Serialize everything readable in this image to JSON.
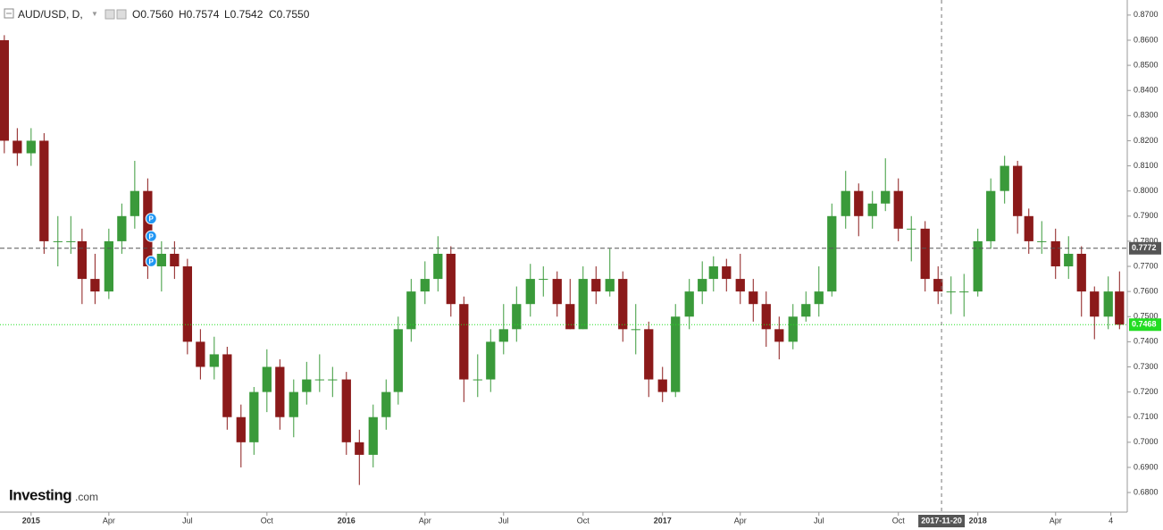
{
  "chart_data": {
    "type": "candlestick",
    "symbol": "AUD/USD, D,",
    "ohlc_readout": [
      "O0.7560",
      "H0.7574",
      "L0.7542",
      "C0.7550"
    ],
    "watermark": [
      "Investing",
      ".com"
    ],
    "up_color": "#3a9a3a",
    "down_color": "#8b1a1a",
    "grid": false,
    "xlim": [
      "2014-11-26",
      "2018-06-23"
    ],
    "ylim": [
      0.6722,
      0.876
    ],
    "xticks": [
      {
        "value": "2015-01-01",
        "label": "2015"
      },
      {
        "value": "2015-04-01",
        "label": "Apr"
      },
      {
        "value": "2015-07-01",
        "label": "Jul"
      },
      {
        "value": "2015-10-01",
        "label": "Oct"
      },
      {
        "value": "2016-01-01",
        "label": "2016"
      },
      {
        "value": "2016-04-01",
        "label": "Apr"
      },
      {
        "value": "2016-07-01",
        "label": "Jul"
      },
      {
        "value": "2016-10-01",
        "label": "Oct"
      },
      {
        "value": "2017-01-01",
        "label": "2017"
      },
      {
        "value": "2017-04-01",
        "label": "Apr"
      },
      {
        "value": "2017-07-01",
        "label": "Jul"
      },
      {
        "value": "2017-10-01",
        "label": "Oct"
      },
      {
        "value": "2018-01-01",
        "label": "2018"
      },
      {
        "value": "2018-04-01",
        "label": "Apr"
      },
      {
        "value": "2018-06-04",
        "label": "4"
      }
    ],
    "yticks": [
      {
        "value": 0.68,
        "label": "0.6800"
      },
      {
        "value": 0.69,
        "label": "0.6900"
      },
      {
        "value": 0.7,
        "label": "0.7000"
      },
      {
        "value": 0.71,
        "label": "0.7100"
      },
      {
        "value": 0.72,
        "label": "0.7200"
      },
      {
        "value": 0.73,
        "label": "0.7300"
      },
      {
        "value": 0.74,
        "label": "0.7400"
      },
      {
        "value": 0.75,
        "label": "0.7500"
      },
      {
        "value": 0.76,
        "label": "0.7600"
      },
      {
        "value": 0.77,
        "label": "0.7700"
      },
      {
        "value": 0.78,
        "label": "0.7800"
      },
      {
        "value": 0.79,
        "label": "0.7900"
      },
      {
        "value": 0.8,
        "label": "0.8000"
      },
      {
        "value": 0.81,
        "label": "0.8100"
      },
      {
        "value": 0.82,
        "label": "0.8200"
      },
      {
        "value": 0.83,
        "label": "0.8300"
      },
      {
        "value": 0.84,
        "label": "0.8400"
      },
      {
        "value": 0.85,
        "label": "0.8500"
      },
      {
        "value": 0.86,
        "label": "0.8600"
      },
      {
        "value": 0.87,
        "label": "0.8700"
      }
    ],
    "reference_line": {
      "value": 0.7772,
      "color": "#555555"
    },
    "last_price": {
      "value": 0.7468,
      "color": "#22dd22"
    },
    "crosshair": {
      "x": "2017-11-20"
    },
    "markers": [
      {
        "x": "2015-05-20",
        "y": 0.789,
        "label": "P"
      },
      {
        "x": "2015-05-20",
        "y": 0.782,
        "label": "P"
      },
      {
        "x": "2015-05-20",
        "y": 0.772,
        "label": "P"
      }
    ],
    "x": [
      "2014-12-01",
      "2014-12-16",
      "2015-01-01",
      "2015-01-16",
      "2015-02-01",
      "2015-02-16",
      "2015-03-01",
      "2015-03-16",
      "2015-04-01",
      "2015-04-16",
      "2015-05-01",
      "2015-05-16",
      "2015-06-01",
      "2015-06-16",
      "2015-07-01",
      "2015-07-16",
      "2015-08-01",
      "2015-08-16",
      "2015-09-01",
      "2015-09-16",
      "2015-10-01",
      "2015-10-16",
      "2015-11-01",
      "2015-11-16",
      "2015-12-01",
      "2015-12-16",
      "2016-01-01",
      "2016-01-16",
      "2016-02-01",
      "2016-02-16",
      "2016-03-01",
      "2016-03-16",
      "2016-04-01",
      "2016-04-16",
      "2016-05-01",
      "2016-05-16",
      "2016-06-01",
      "2016-06-16",
      "2016-07-01",
      "2016-07-16",
      "2016-08-01",
      "2016-08-16",
      "2016-09-01",
      "2016-09-16",
      "2016-10-01",
      "2016-10-16",
      "2016-11-01",
      "2016-11-16",
      "2016-12-01",
      "2016-12-16",
      "2017-01-01",
      "2017-01-16",
      "2017-02-01",
      "2017-02-16",
      "2017-03-01",
      "2017-03-16",
      "2017-04-01",
      "2017-04-16",
      "2017-05-01",
      "2017-05-16",
      "2017-06-01",
      "2017-06-16",
      "2017-07-01",
      "2017-07-16",
      "2017-08-01",
      "2017-08-16",
      "2017-09-01",
      "2017-09-16",
      "2017-10-01",
      "2017-10-16",
      "2017-11-01",
      "2017-11-16",
      "2017-12-01",
      "2017-12-16",
      "2018-01-01",
      "2018-01-16",
      "2018-02-01",
      "2018-02-16",
      "2018-03-01",
      "2018-03-16",
      "2018-04-01",
      "2018-04-16",
      "2018-05-01",
      "2018-05-16",
      "2018-06-01",
      "2018-06-14"
    ],
    "candles": [
      [
        0.86,
        0.862,
        0.815,
        0.82
      ],
      [
        0.82,
        0.825,
        0.81,
        0.815
      ],
      [
        0.815,
        0.825,
        0.81,
        0.82
      ],
      [
        0.82,
        0.823,
        0.775,
        0.78
      ],
      [
        0.78,
        0.79,
        0.77,
        0.78
      ],
      [
        0.78,
        0.79,
        0.775,
        0.78
      ],
      [
        0.78,
        0.785,
        0.755,
        0.765
      ],
      [
        0.765,
        0.775,
        0.755,
        0.76
      ],
      [
        0.76,
        0.785,
        0.757,
        0.78
      ],
      [
        0.78,
        0.795,
        0.775,
        0.79
      ],
      [
        0.79,
        0.812,
        0.785,
        0.8
      ],
      [
        0.8,
        0.805,
        0.765,
        0.77
      ],
      [
        0.77,
        0.78,
        0.76,
        0.775
      ],
      [
        0.775,
        0.78,
        0.765,
        0.77
      ],
      [
        0.77,
        0.773,
        0.735,
        0.74
      ],
      [
        0.74,
        0.745,
        0.725,
        0.73
      ],
      [
        0.73,
        0.742,
        0.725,
        0.735
      ],
      [
        0.735,
        0.738,
        0.705,
        0.71
      ],
      [
        0.71,
        0.715,
        0.69,
        0.7
      ],
      [
        0.7,
        0.722,
        0.695,
        0.72
      ],
      [
        0.72,
        0.737,
        0.712,
        0.73
      ],
      [
        0.73,
        0.733,
        0.705,
        0.71
      ],
      [
        0.71,
        0.725,
        0.702,
        0.72
      ],
      [
        0.72,
        0.732,
        0.715,
        0.725
      ],
      [
        0.725,
        0.735,
        0.72,
        0.725
      ],
      [
        0.725,
        0.73,
        0.718,
        0.725
      ],
      [
        0.725,
        0.728,
        0.695,
        0.7
      ],
      [
        0.7,
        0.705,
        0.683,
        0.695
      ],
      [
        0.695,
        0.715,
        0.69,
        0.71
      ],
      [
        0.71,
        0.725,
        0.705,
        0.72
      ],
      [
        0.72,
        0.75,
        0.715,
        0.745
      ],
      [
        0.745,
        0.765,
        0.74,
        0.76
      ],
      [
        0.76,
        0.772,
        0.755,
        0.765
      ],
      [
        0.765,
        0.782,
        0.76,
        0.775
      ],
      [
        0.775,
        0.778,
        0.75,
        0.755
      ],
      [
        0.755,
        0.758,
        0.716,
        0.725
      ],
      [
        0.725,
        0.735,
        0.718,
        0.725
      ],
      [
        0.725,
        0.745,
        0.72,
        0.74
      ],
      [
        0.74,
        0.755,
        0.735,
        0.745
      ],
      [
        0.745,
        0.762,
        0.74,
        0.755
      ],
      [
        0.755,
        0.771,
        0.75,
        0.765
      ],
      [
        0.765,
        0.77,
        0.758,
        0.765
      ],
      [
        0.765,
        0.768,
        0.75,
        0.755
      ],
      [
        0.755,
        0.765,
        0.745,
        0.745
      ],
      [
        0.745,
        0.77,
        0.745,
        0.765
      ],
      [
        0.765,
        0.77,
        0.755,
        0.76
      ],
      [
        0.76,
        0.777,
        0.758,
        0.765
      ],
      [
        0.765,
        0.768,
        0.74,
        0.745
      ],
      [
        0.745,
        0.755,
        0.735,
        0.745
      ],
      [
        0.745,
        0.748,
        0.718,
        0.725
      ],
      [
        0.725,
        0.73,
        0.716,
        0.72
      ],
      [
        0.72,
        0.755,
        0.718,
        0.75
      ],
      [
        0.75,
        0.765,
        0.745,
        0.76
      ],
      [
        0.76,
        0.772,
        0.755,
        0.765
      ],
      [
        0.765,
        0.774,
        0.76,
        0.77
      ],
      [
        0.77,
        0.773,
        0.76,
        0.765
      ],
      [
        0.765,
        0.775,
        0.755,
        0.76
      ],
      [
        0.76,
        0.765,
        0.748,
        0.755
      ],
      [
        0.755,
        0.76,
        0.738,
        0.745
      ],
      [
        0.745,
        0.75,
        0.733,
        0.74
      ],
      [
        0.74,
        0.755,
        0.737,
        0.75
      ],
      [
        0.75,
        0.76,
        0.748,
        0.755
      ],
      [
        0.755,
        0.77,
        0.75,
        0.76
      ],
      [
        0.76,
        0.795,
        0.758,
        0.79
      ],
      [
        0.79,
        0.808,
        0.785,
        0.8
      ],
      [
        0.8,
        0.803,
        0.782,
        0.79
      ],
      [
        0.79,
        0.8,
        0.785,
        0.795
      ],
      [
        0.795,
        0.813,
        0.792,
        0.8
      ],
      [
        0.8,
        0.805,
        0.78,
        0.785
      ],
      [
        0.785,
        0.79,
        0.772,
        0.785
      ],
      [
        0.785,
        0.788,
        0.76,
        0.765
      ],
      [
        0.765,
        0.77,
        0.755,
        0.76
      ],
      [
        0.76,
        0.766,
        0.751,
        0.76
      ],
      [
        0.76,
        0.767,
        0.75,
        0.76
      ],
      [
        0.76,
        0.785,
        0.758,
        0.78
      ],
      [
        0.78,
        0.805,
        0.777,
        0.8
      ],
      [
        0.8,
        0.814,
        0.795,
        0.81
      ],
      [
        0.81,
        0.812,
        0.783,
        0.79
      ],
      [
        0.79,
        0.793,
        0.775,
        0.78
      ],
      [
        0.78,
        0.788,
        0.775,
        0.78
      ],
      [
        0.78,
        0.785,
        0.765,
        0.77
      ],
      [
        0.77,
        0.782,
        0.765,
        0.775
      ],
      [
        0.775,
        0.778,
        0.75,
        0.76
      ],
      [
        0.76,
        0.762,
        0.741,
        0.75
      ],
      [
        0.75,
        0.766,
        0.745,
        0.76
      ],
      [
        0.76,
        0.768,
        0.745,
        0.7468
      ]
    ]
  }
}
